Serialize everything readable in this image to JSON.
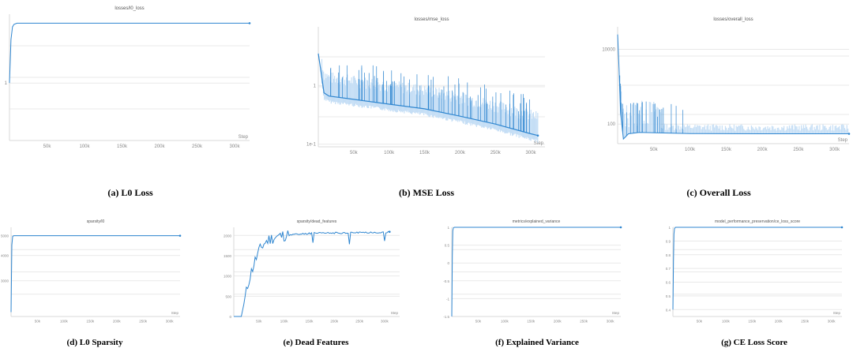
{
  "colors": {
    "line": "#2f86d0",
    "band": "#c5def5",
    "grid": "#e9e9e9",
    "text": "#888888"
  },
  "captions": {
    "a": "(a) L0 Loss",
    "b": "(b) MSE Loss",
    "c": "(c) Overall Loss",
    "d": "(d) L0 Sparsity",
    "e": "(e) Dead Features",
    "f": "(f) Explained Variance",
    "g": "(g) CE Loss Score"
  },
  "chart_data": [
    {
      "id": "a",
      "type": "line",
      "title": "losses/l0_loss",
      "xlabel": "Step",
      "ylabel": "",
      "xlim": [
        0,
        320000
      ],
      "xticks": [
        50000,
        100000,
        150000,
        200000,
        250000,
        300000
      ],
      "xtick_labels": [
        "50k",
        "100k",
        "150k",
        "200k",
        "250k",
        "300k"
      ],
      "yscale": "log",
      "ylim": [
        0.4,
        3
      ],
      "yticks": [
        1
      ],
      "ytick_labels": [
        "1"
      ],
      "series": [
        {
          "x": [
            0,
            2000,
            4000,
            6000,
            10000,
            20000,
            320000
          ],
          "y": [
            1.0,
            2.0,
            2.45,
            2.55,
            2.6,
            2.6,
            2.6
          ]
        }
      ]
    },
    {
      "id": "b",
      "type": "line",
      "title": "losses/mse_loss",
      "xlabel": "Step",
      "ylabel": "",
      "xlim": [
        0,
        320000
      ],
      "xticks": [
        50000,
        100000,
        150000,
        200000,
        250000,
        300000
      ],
      "xtick_labels": [
        "50k",
        "100k",
        "150k",
        "200k",
        "250k",
        "300k"
      ],
      "yscale": "log",
      "ylim": [
        0.09,
        10
      ],
      "yticks": [
        0.1,
        1
      ],
      "ytick_labels": [
        "1e-1",
        "1"
      ],
      "series": [
        {
          "x": [
            0,
            3000,
            8000,
            15000,
            50000,
            100000,
            150000,
            200000,
            250000,
            300000,
            310000
          ],
          "y": [
            3.5,
            2.0,
            0.75,
            0.66,
            0.58,
            0.48,
            0.4,
            0.3,
            0.22,
            0.15,
            0.14
          ]
        }
      ]
    },
    {
      "id": "c",
      "type": "line",
      "title": "losses/overall_loss",
      "xlabel": "Step",
      "ylabel": "",
      "xlim": [
        0,
        320000
      ],
      "xticks": [
        50000,
        100000,
        150000,
        200000,
        250000,
        300000
      ],
      "xtick_labels": [
        "50k",
        "100k",
        "150k",
        "200k",
        "250k",
        "300k"
      ],
      "yscale": "log",
      "ylim": [
        30,
        40000
      ],
      "yticks": [
        100,
        10000
      ],
      "ytick_labels": [
        "100",
        "10000"
      ],
      "series": [
        {
          "x": [
            0,
            2000,
            4000,
            8000,
            15000,
            30000,
            60000,
            100000,
            200000,
            300000,
            320000
          ],
          "y": [
            25000,
            3000,
            200,
            40,
            55,
            60,
            58,
            56,
            55,
            55,
            55
          ]
        }
      ]
    },
    {
      "id": "d",
      "type": "line",
      "title": "sparsity/l0",
      "xlabel": "Step",
      "ylabel": "",
      "xlim": [
        0,
        320000
      ],
      "xticks": [
        50000,
        100000,
        150000,
        200000,
        250000,
        300000
      ],
      "xtick_labels": [
        "50k",
        "100k",
        "150k",
        "200k",
        "250k",
        "300k"
      ],
      "yscale": "log",
      "ylim": [
        2000,
        5500
      ],
      "yticks": [
        3000,
        4000,
        5000
      ],
      "ytick_labels": [
        "3000",
        "4000",
        "5000"
      ],
      "series": [
        {
          "x": [
            0,
            1500,
            3000,
            5000,
            10000,
            320000
          ],
          "y": [
            2100,
            4500,
            4950,
            5000,
            5000,
            5000
          ]
        }
      ]
    },
    {
      "id": "e",
      "type": "line",
      "title": "sparsity/dead_features",
      "xlabel": "Step",
      "ylabel": "",
      "xlim": [
        0,
        330000
      ],
      "xticks": [
        50000,
        100000,
        150000,
        200000,
        250000,
        300000
      ],
      "xtick_labels": [
        "50k",
        "100k",
        "150k",
        "200k",
        "250k",
        "300k"
      ],
      "yscale": "linear",
      "ylim": [
        0,
        2200
      ],
      "yticks": [
        0,
        500,
        1000,
        1500,
        2000
      ],
      "ytick_labels": [
        "0",
        "500",
        "1000",
        "1500",
        "2000"
      ],
      "series": [
        {
          "x": [
            0,
            15000,
            20000,
            25000,
            30000,
            40000,
            50000,
            60000,
            70000,
            80000,
            100000,
            150000,
            200000,
            250000,
            310000
          ],
          "y": [
            0,
            0,
            300,
            600,
            900,
            1300,
            1600,
            1800,
            1900,
            1950,
            2000,
            2050,
            2060,
            2070,
            2080
          ]
        }
      ]
    },
    {
      "id": "f",
      "type": "line",
      "title": "metrics/explained_variance",
      "xlabel": "Step",
      "ylabel": "",
      "xlim": [
        0,
        320000
      ],
      "xticks": [
        50000,
        100000,
        150000,
        200000,
        250000,
        300000
      ],
      "xtick_labels": [
        "50k",
        "100k",
        "150k",
        "200k",
        "250k",
        "300k"
      ],
      "yscale": "linear",
      "ylim": [
        -1.5,
        1
      ],
      "yticks": [
        -1.5,
        -1,
        -0.5,
        0,
        0.5,
        1
      ],
      "ytick_labels": [
        "-1.5",
        "-1",
        "-0.5",
        "0",
        "0.5",
        "1"
      ],
      "series": [
        {
          "x": [
            0,
            1000,
            2000,
            3000,
            5000,
            320000
          ],
          "y": [
            -1.5,
            0.2,
            0.9,
            0.98,
            1.0,
            1.0
          ]
        }
      ]
    },
    {
      "id": "g",
      "type": "line",
      "title": "model_performance_preservation/ce_loss_score",
      "xlabel": "Step",
      "ylabel": "",
      "xlim": [
        0,
        320000
      ],
      "xticks": [
        50000,
        100000,
        150000,
        200000,
        250000,
        300000
      ],
      "xtick_labels": [
        "50k",
        "100k",
        "150k",
        "200k",
        "250k",
        "300k"
      ],
      "yscale": "linear",
      "ylim": [
        0.35,
        1
      ],
      "yticks": [
        0.4,
        0.5,
        0.6,
        0.7,
        0.8,
        0.9,
        1
      ],
      "ytick_labels": [
        "0.4",
        "0.5",
        "0.6",
        "0.7",
        "0.8",
        "0.9",
        "1"
      ],
      "series": [
        {
          "x": [
            0,
            1000,
            2000,
            3000,
            5000,
            320000
          ],
          "y": [
            0.4,
            0.75,
            0.95,
            0.99,
            1.0,
            1.0
          ]
        }
      ]
    }
  ]
}
